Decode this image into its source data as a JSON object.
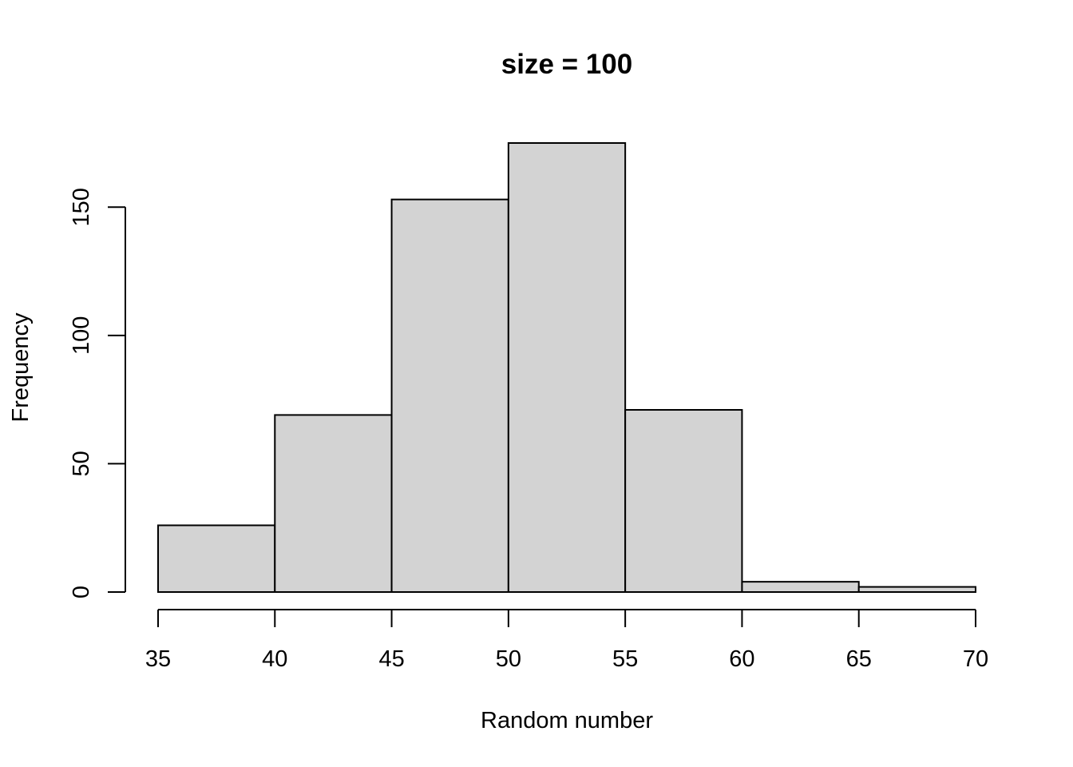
{
  "chart_data": {
    "type": "bar",
    "subtype": "histogram",
    "title": "size = 100",
    "xlabel": "Random number",
    "ylabel": "Frequency",
    "bins": [
      {
        "from": 35,
        "to": 40,
        "value": 26
      },
      {
        "from": 40,
        "to": 45,
        "value": 69
      },
      {
        "from": 45,
        "to": 50,
        "value": 153
      },
      {
        "from": 50,
        "to": 55,
        "value": 175
      },
      {
        "from": 55,
        "to": 60,
        "value": 71
      },
      {
        "from": 60,
        "to": 65,
        "value": 4
      },
      {
        "from": 65,
        "to": 70,
        "value": 2
      }
    ],
    "xlim": [
      35,
      70
    ],
    "ylim": [
      0,
      175
    ],
    "x_ticks": [
      "35",
      "40",
      "45",
      "50",
      "55",
      "60",
      "65",
      "70"
    ],
    "y_ticks": [
      "0",
      "50",
      "100",
      "150"
    ],
    "bar_color": "#d3d3d3",
    "edge_color": "#000000",
    "grid": false,
    "legend": "none"
  }
}
